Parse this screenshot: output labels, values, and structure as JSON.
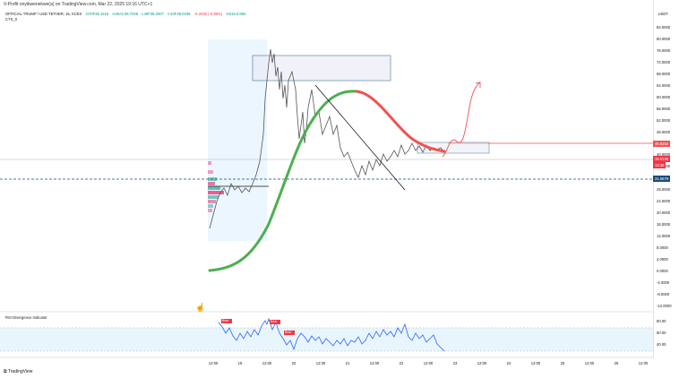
{
  "top_bar": {
    "text": "V-Profit onyikwenekwe(a) on TradingView.com, Mar 22, 2025 19:16 UTC+1"
  },
  "symbol_header": {
    "name": "OFFICIAL TRUMP / USD TETHER, 15, KCEX",
    "open": "O70F35.1515",
    "high": "H40AC38.7048",
    "low": "L40F38.2007",
    "close": "C40F38.0239",
    "change": "-0.2038 (-0.99%)",
    "volume": "Vol15.0.855"
  },
  "sub_label": "CTS_0",
  "currency": "USDT",
  "price_axis": {
    "labels": [
      "84.0000",
      "80.0000",
      "76.0000",
      "72.0000",
      "68.0000",
      "64.0000",
      "60.0000",
      "56.0000",
      "52.0000",
      "48.0000",
      "44.0000",
      "40.0000",
      "36.0000",
      "32.0000",
      "28.0000",
      "24.0000",
      "20.0000",
      "16.0000",
      "12.0000",
      "8.0000",
      "4.0000",
      "0.0000",
      "-4.0000",
      "-8.0000",
      "-12.0000"
    ],
    "price_tag_red": "45.8253",
    "price_tag_current": "38.0239",
    "price_tag_countdown": "13:38",
    "price_tag_blue": "31.5679"
  },
  "rsi": {
    "title": "RSI Divergence Indicator",
    "labels": [
      "80.00",
      "60.00",
      "40.00"
    ],
    "bear_label": "Bear"
  },
  "time_axis": [
    "12:00",
    "19",
    "12:00",
    "20",
    "12:00",
    "21",
    "12:00",
    "22",
    "12:00",
    "23",
    "12:00",
    "24",
    "12:00",
    "25",
    "12:00",
    "26",
    "12:00"
  ],
  "footer": {
    "brand": "TradingView"
  },
  "colors": {
    "up": "#089981",
    "down": "#f23645",
    "green_curve": "#4caf50",
    "red_curve": "#ef5350",
    "blue_line": "#1e4a7a",
    "rsi_line": "#2962ff"
  }
}
